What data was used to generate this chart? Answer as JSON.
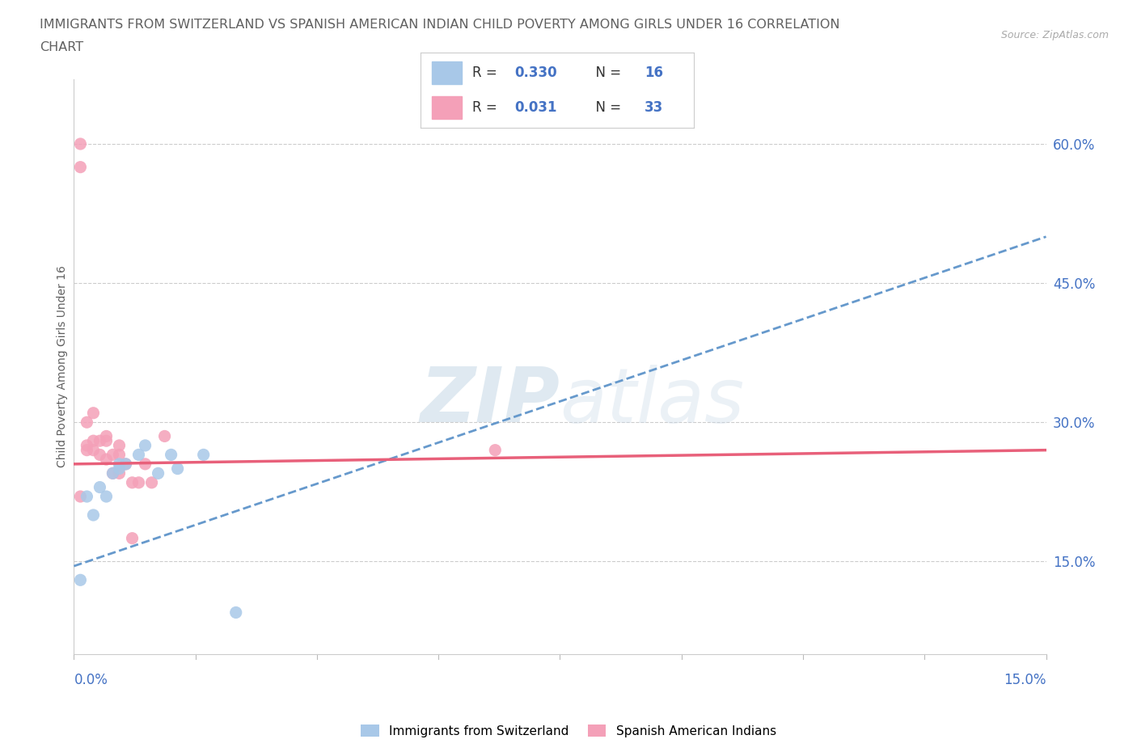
{
  "title_line1": "IMMIGRANTS FROM SWITZERLAND VS SPANISH AMERICAN INDIAN CHILD POVERTY AMONG GIRLS UNDER 16 CORRELATION",
  "title_line2": "CHART",
  "source": "Source: ZipAtlas.com",
  "ylabel": "Child Poverty Among Girls Under 16",
  "yticks_labels": [
    "15.0%",
    "30.0%",
    "45.0%",
    "60.0%"
  ],
  "ytick_vals": [
    0.15,
    0.3,
    0.45,
    0.6
  ],
  "xlim": [
    0.0,
    0.15
  ],
  "ylim": [
    0.05,
    0.67
  ],
  "color_swiss": "#a8c8e8",
  "color_indian": "#f4a0b8",
  "color_line_swiss": "#6699cc",
  "color_line_indian": "#e8607a",
  "swiss_scatter_x": [
    0.001,
    0.002,
    0.003,
    0.004,
    0.005,
    0.006,
    0.007,
    0.007,
    0.008,
    0.01,
    0.011,
    0.013,
    0.015,
    0.016,
    0.02,
    0.025
  ],
  "swiss_scatter_y": [
    0.13,
    0.22,
    0.2,
    0.23,
    0.22,
    0.245,
    0.25,
    0.255,
    0.255,
    0.265,
    0.275,
    0.245,
    0.265,
    0.25,
    0.265,
    0.095
  ],
  "indian_scatter_x": [
    0.001,
    0.001,
    0.001,
    0.002,
    0.002,
    0.002,
    0.003,
    0.003,
    0.003,
    0.004,
    0.004,
    0.005,
    0.005,
    0.005,
    0.006,
    0.006,
    0.007,
    0.007,
    0.007,
    0.008,
    0.009,
    0.009,
    0.01,
    0.011,
    0.012,
    0.014,
    0.065
  ],
  "indian_scatter_y": [
    0.6,
    0.575,
    0.22,
    0.275,
    0.27,
    0.3,
    0.27,
    0.28,
    0.31,
    0.265,
    0.28,
    0.26,
    0.28,
    0.285,
    0.245,
    0.265,
    0.245,
    0.265,
    0.275,
    0.255,
    0.235,
    0.175,
    0.235,
    0.255,
    0.235,
    0.285,
    0.27
  ],
  "swiss_trend_x": [
    0.0,
    0.15
  ],
  "swiss_trend_y": [
    0.145,
    0.5
  ],
  "indian_trend_x": [
    0.0,
    0.15
  ],
  "indian_trend_y": [
    0.255,
    0.27
  ],
  "watermark_top": "ZIP",
  "watermark_bot": "atlas",
  "background_color": "#ffffff",
  "plot_bg_color": "#ffffff",
  "grid_color": "#cccccc",
  "title_color": "#606060",
  "axis_label_color": "#606060",
  "tick_color": "#4472c4",
  "legend_box_color": "#ffffff",
  "legend_border_color": "#cccccc"
}
